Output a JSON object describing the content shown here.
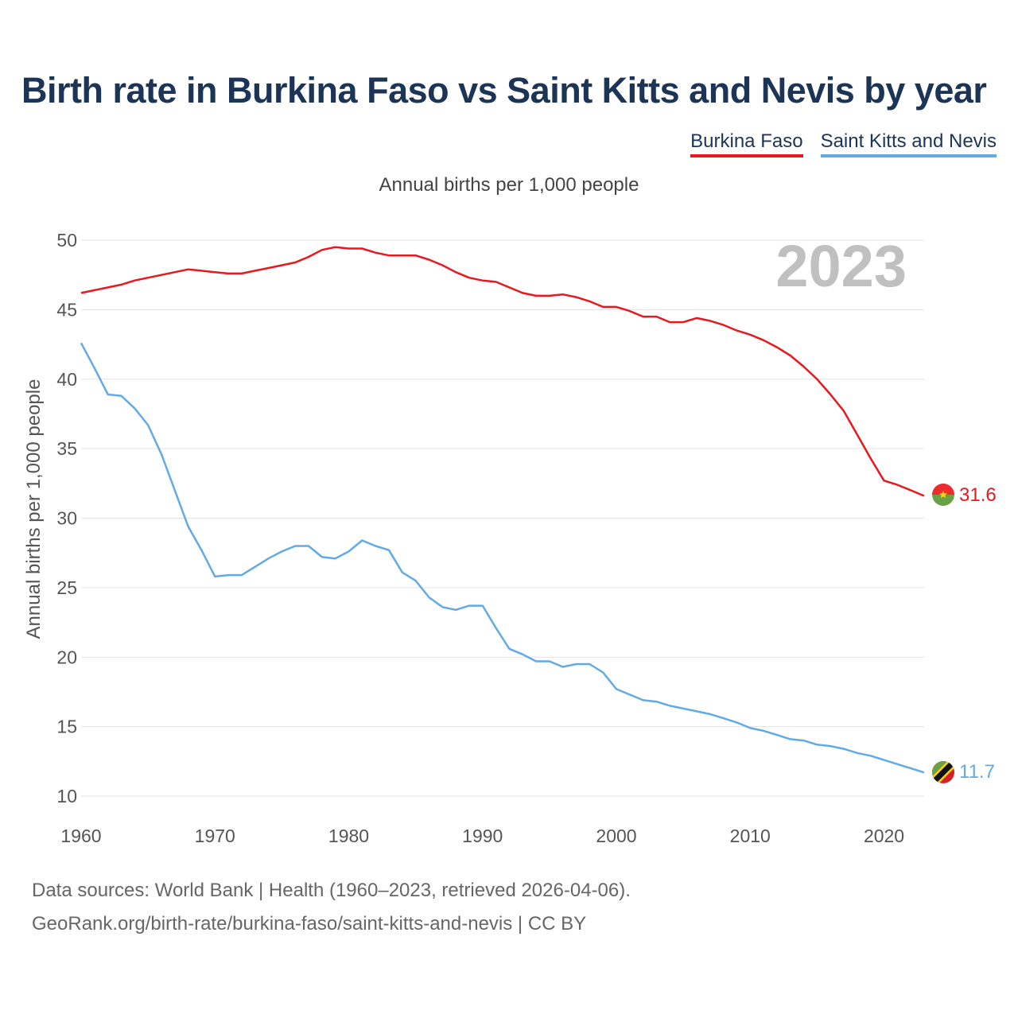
{
  "title": "Birth rate in Burkina Faso vs Saint Kitts and Nevis by year",
  "legend": [
    "Burkina Faso",
    "Saint Kitts and Nevis"
  ],
  "colors": {
    "burkina": "#e8181e",
    "skn": "#62aae6"
  },
  "source": {
    "line1": "Data sources: World Bank | Health (1960–2023, retrieved 2026-04-06).",
    "line2": "GeoRank.org/birth-rate/burkina-faso/saint-kitts-and-nevis | CC BY"
  },
  "chart_data": {
    "type": "line",
    "title": "Birth rate in Burkina Faso vs Saint Kitts and Nevis by year",
    "subtitle": "Annual births per 1,000 people",
    "ylabel": "Annual births per 1,000 people",
    "xlabel": "",
    "watermark_year": "2023",
    "xlim": [
      1960,
      2023
    ],
    "ylim": [
      10,
      50
    ],
    "x_ticks": [
      1960,
      1970,
      1980,
      1990,
      2000,
      2010,
      2020
    ],
    "y_ticks": [
      10,
      15,
      20,
      25,
      30,
      35,
      40,
      45,
      50
    ],
    "grid": true,
    "legend_position": "top-right",
    "x": [
      1960,
      1961,
      1962,
      1963,
      1964,
      1965,
      1966,
      1967,
      1968,
      1969,
      1970,
      1971,
      1972,
      1973,
      1974,
      1975,
      1976,
      1977,
      1978,
      1979,
      1980,
      1981,
      1982,
      1983,
      1984,
      1985,
      1986,
      1987,
      1988,
      1989,
      1990,
      1991,
      1992,
      1993,
      1994,
      1995,
      1996,
      1997,
      1998,
      1999,
      2000,
      2001,
      2002,
      2003,
      2004,
      2005,
      2006,
      2007,
      2008,
      2009,
      2010,
      2011,
      2012,
      2013,
      2014,
      2015,
      2016,
      2017,
      2018,
      2019,
      2020,
      2021,
      2022,
      2023
    ],
    "series": [
      {
        "name": "Burkina Faso",
        "end_label": "31.6",
        "values": [
          46.2,
          46.4,
          46.6,
          46.8,
          47.1,
          47.3,
          47.5,
          47.7,
          47.9,
          47.8,
          47.7,
          47.6,
          47.6,
          47.8,
          48.0,
          48.2,
          48.4,
          48.8,
          49.3,
          49.5,
          49.4,
          49.4,
          49.1,
          48.9,
          48.9,
          48.9,
          48.6,
          48.2,
          47.7,
          47.3,
          47.1,
          47.0,
          46.6,
          46.2,
          46.0,
          46.0,
          46.1,
          45.9,
          45.6,
          45.2,
          45.2,
          44.9,
          44.5,
          44.5,
          44.1,
          44.1,
          44.4,
          44.2,
          43.9,
          43.5,
          43.2,
          42.8,
          42.3,
          41.7,
          40.9,
          40.0,
          38.9,
          37.7,
          36.0,
          34.3,
          32.7,
          32.4,
          32.0,
          31.6
        ]
      },
      {
        "name": "Saint Kitts and Nevis",
        "end_label": "11.7",
        "values": [
          42.6,
          40.8,
          38.9,
          38.8,
          37.9,
          36.7,
          34.6,
          32.0,
          29.4,
          27.7,
          25.8,
          25.9,
          25.9,
          26.5,
          27.1,
          27.6,
          28.0,
          28.0,
          27.2,
          27.1,
          27.6,
          28.4,
          28.0,
          27.7,
          26.1,
          25.5,
          24.3,
          23.6,
          23.4,
          23.7,
          23.7,
          22.1,
          20.6,
          20.2,
          19.7,
          19.7,
          19.3,
          19.5,
          19.5,
          18.9,
          17.7,
          17.3,
          16.9,
          16.8,
          16.5,
          16.3,
          16.1,
          15.9,
          15.6,
          15.3,
          14.9,
          14.7,
          14.4,
          14.1,
          14.0,
          13.7,
          13.6,
          13.4,
          13.1,
          12.9,
          12.6,
          12.3,
          12.0,
          11.7
        ]
      }
    ]
  }
}
